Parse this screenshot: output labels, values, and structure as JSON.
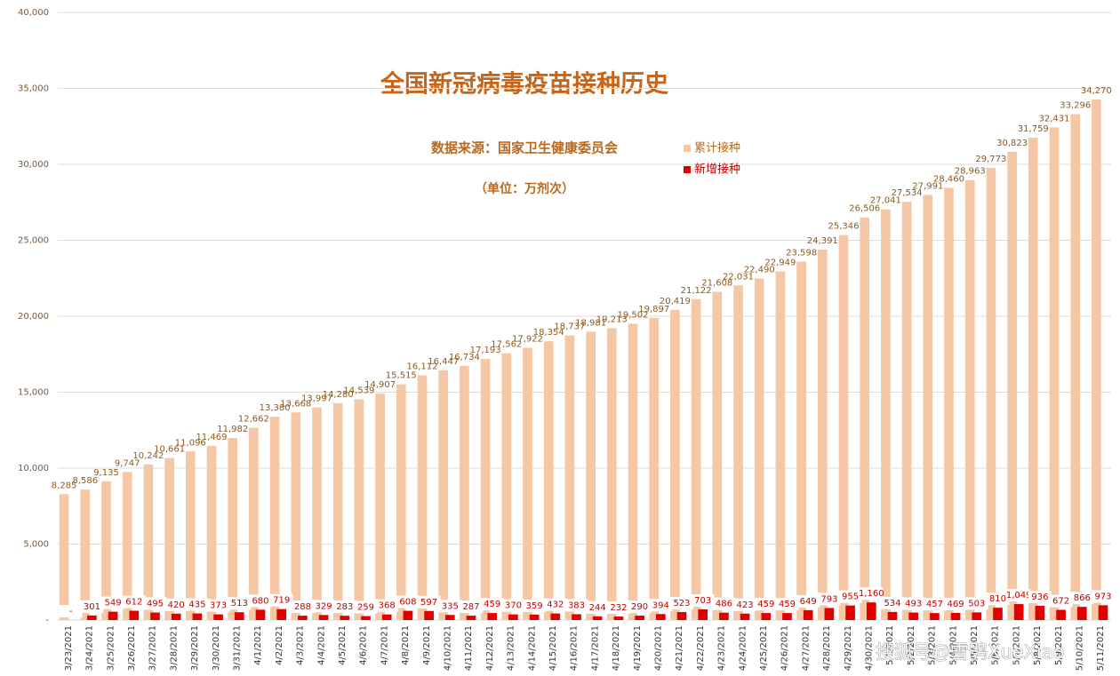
{
  "chart_data": {
    "type": "bar",
    "title": "全国新冠病毒疫苗接种历史",
    "subtitle": "数据来源：国家卫生健康委员会",
    "unit_note": "（单位：万剂次）",
    "watermark": "搜狐号@雪鸮XueXiao",
    "categories": [
      "3/23/2021",
      "3/24/2021",
      "3/25/2021",
      "3/26/2021",
      "3/27/2021",
      "3/28/2021",
      "3/29/2021",
      "3/30/2021",
      "3/31/2021",
      "4/1/2021",
      "4/2/2021",
      "4/3/2021",
      "4/4/2021",
      "4/5/2021",
      "4/6/2021",
      "4/7/2021",
      "4/8/2021",
      "4/9/2021",
      "4/10/2021",
      "4/11/2021",
      "4/12/2021",
      "4/13/2021",
      "4/14/2021",
      "4/15/2021",
      "4/16/2021",
      "4/17/2021",
      "4/18/2021",
      "4/19/2021",
      "4/20/2021",
      "4/21/2021",
      "4/22/2021",
      "4/23/2021",
      "4/24/2021",
      "4/25/2021",
      "4/26/2021",
      "4/27/2021",
      "4/28/2021",
      "4/29/2021",
      "4/30/2021",
      "5/1/2021",
      "5/2/2021",
      "5/3/2021",
      "5/4/2021",
      "5/5/2021",
      "5/6/2021",
      "5/7/2021",
      "5/8/2021",
      "5/9/2021",
      "5/10/2021",
      "5/11/2021"
    ],
    "series": [
      {
        "name": "累计接种",
        "color": "#f6c7a4",
        "values": [
          8285,
          8586,
          9135,
          9747,
          10242,
          10661,
          11096,
          11469,
          11982,
          12662,
          13380,
          13668,
          13997,
          14280,
          14539,
          14907,
          15515,
          16112,
          16447,
          16734,
          17193,
          17562,
          17922,
          18354,
          18737,
          18981,
          19213,
          19502,
          19897,
          20419,
          21122,
          21608,
          22031,
          22490,
          22949,
          23598,
          24391,
          25346,
          26506,
          27041,
          27534,
          27991,
          28460,
          28963,
          29773,
          30823,
          31759,
          32431,
          33296,
          34270
        ],
        "value_labels": [
          "8,285",
          "8,586",
          "9,135",
          "9,747",
          "10,242",
          "10,661",
          "11,096",
          "11,469",
          "11,982",
          "12,662",
          "13,380",
          "13,668",
          "13,997",
          "14,280",
          "14,539",
          "14,907",
          "15,515",
          "16,112",
          "16,447",
          "16,734",
          "17,193",
          "17,562",
          "17,922",
          "18,354",
          "18,737",
          "18,981",
          "19,213",
          "19,502",
          "19,897",
          "20,419",
          "21,122",
          "21,608",
          "22,031",
          "22,490",
          "22,949",
          "23,598",
          "24,391",
          "25,346",
          "26,506",
          "27,041",
          "27,534",
          "27,991",
          "28,460",
          "28,963",
          "29,773",
          "30,823",
          "31,759",
          "32,431",
          "33,296",
          "34,270"
        ]
      },
      {
        "name": "新增接种",
        "color": "#e00000",
        "values": [
          null,
          301,
          549,
          612,
          495,
          420,
          435,
          373,
          513,
          680,
          719,
          288,
          329,
          283,
          259,
          368,
          608,
          597,
          335,
          287,
          459,
          370,
          359,
          432,
          383,
          244,
          232,
          290,
          394,
          523,
          703,
          486,
          423,
          459,
          459,
          649,
          793,
          955,
          1160,
          534,
          493,
          457,
          469,
          503,
          810,
          1049,
          936,
          672,
          866,
          973
        ],
        "value_labels": [
          "-",
          "301",
          "549",
          "612",
          "495",
          "420",
          "435",
          "373",
          "513",
          "680",
          "719",
          "288",
          "329",
          "283",
          "259",
          "368",
          "608",
          "597",
          "335",
          "287",
          "459",
          "370",
          "359",
          "432",
          "383",
          "244",
          "232",
          "290",
          "394",
          "523",
          "703",
          "486",
          "423",
          "459",
          "459",
          "649",
          "793",
          "955",
          "1,160",
          "534",
          "493",
          "457",
          "469",
          "503",
          "810",
          "1,049",
          "936",
          "672",
          "866",
          "973"
        ]
      }
    ],
    "ylim": [
      0,
      40000
    ],
    "yticks": [
      {
        "value": 0,
        "label": "-"
      },
      {
        "value": 5000,
        "label": "5,000"
      },
      {
        "value": 10000,
        "label": "10,000"
      },
      {
        "value": 15000,
        "label": "15,000"
      },
      {
        "value": 20000,
        "label": "20,000"
      },
      {
        "value": 25000,
        "label": "25,000"
      },
      {
        "value": 30000,
        "label": "30,000"
      },
      {
        "value": 35000,
        "label": "35,000"
      },
      {
        "value": 40000,
        "label": "40,000"
      }
    ],
    "grid": true
  }
}
